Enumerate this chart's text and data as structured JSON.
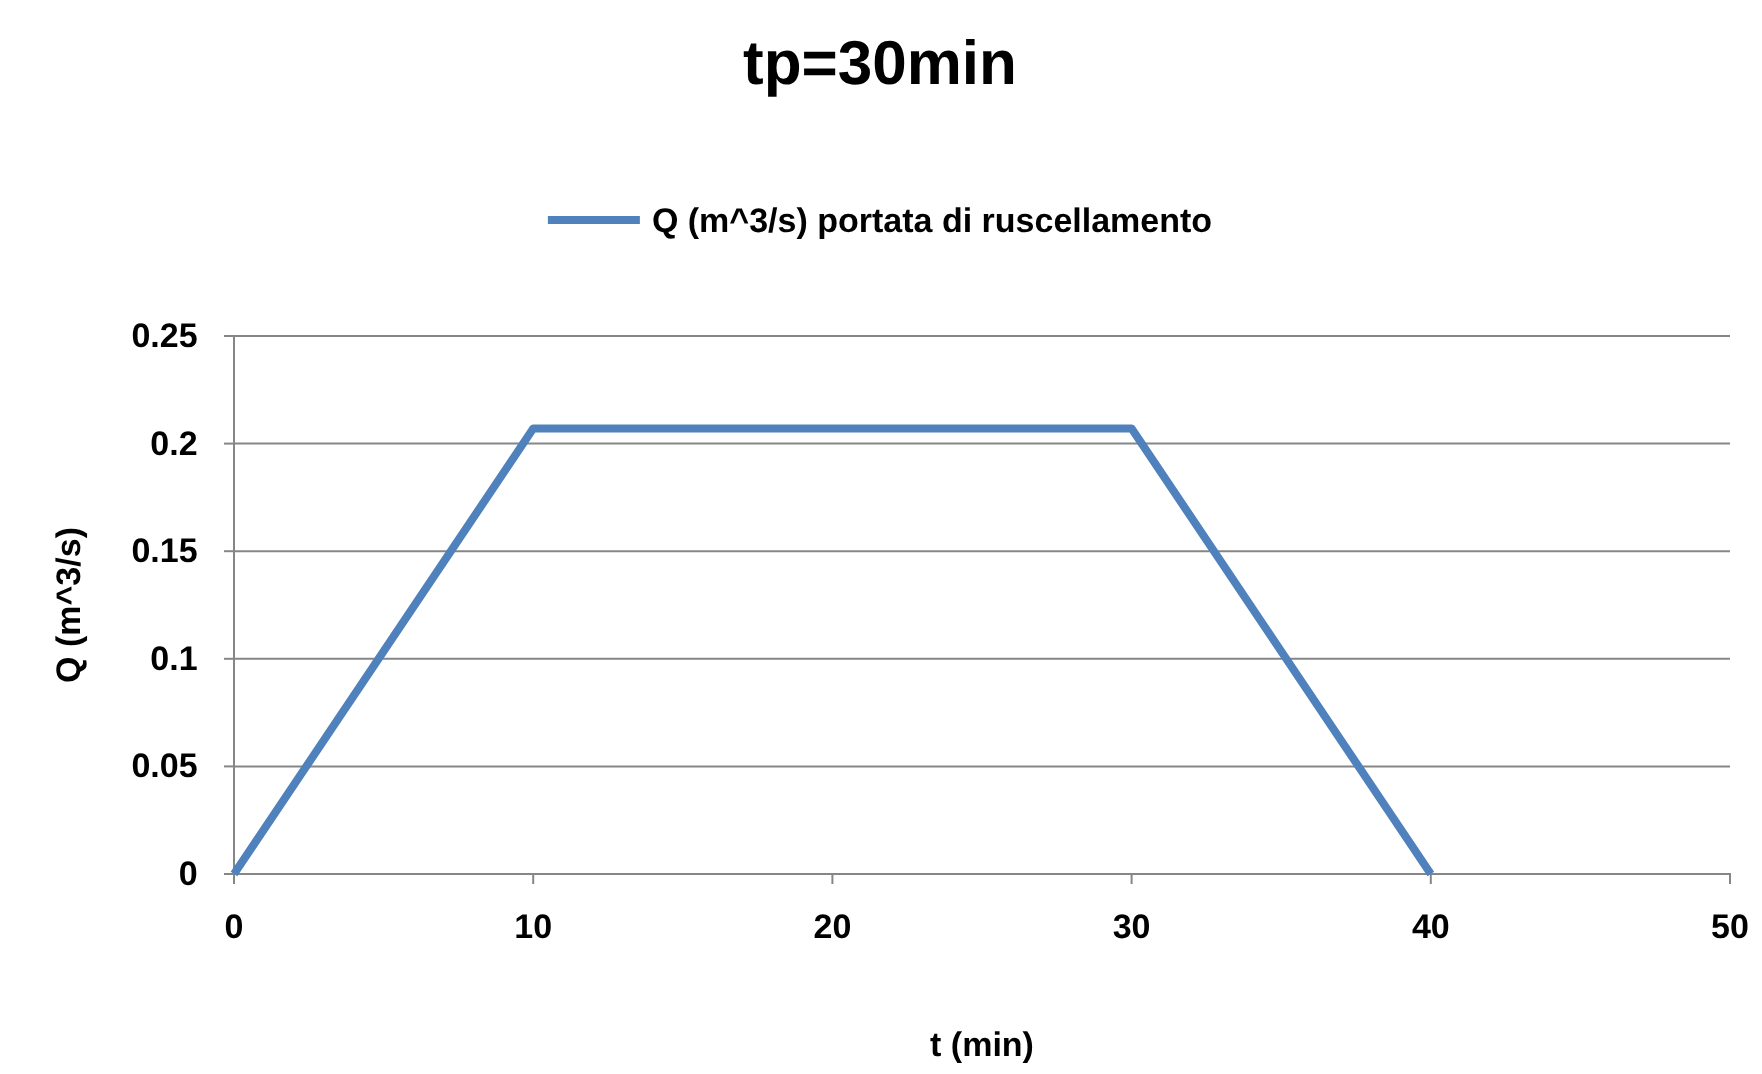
{
  "chart_data": {
    "type": "line",
    "title": "tp=30min",
    "xlabel": "t (min)",
    "ylabel": "Q (m^3/s)",
    "x": [
      0,
      10,
      30,
      40
    ],
    "series": [
      {
        "name": "Q (m^3/s) portata di ruscellamento",
        "color": "#4f81bd",
        "values": [
          0,
          0.207,
          0.207,
          0
        ]
      }
    ],
    "xlim": [
      0,
      50
    ],
    "xticks": [
      0,
      10,
      20,
      30,
      40,
      50
    ],
    "ylim": [
      0,
      0.25
    ],
    "yticks": [
      0,
      0.05,
      0.1,
      0.15,
      0.2,
      0.25
    ],
    "grid": "y",
    "legend": "top",
    "marker": "none",
    "line_style": "solid"
  }
}
